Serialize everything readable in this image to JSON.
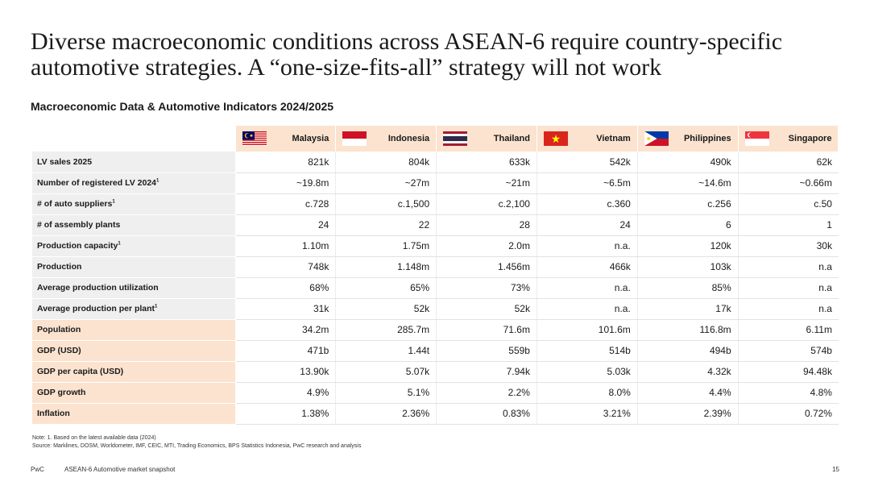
{
  "title": "Diverse macroeconomic conditions across ASEAN-6 require country-specific automotive strategies. A “one-size-fits-all” strategy will not work",
  "subtitle": "Macroeconomic Data & Automotive Indicators 2024/2025",
  "countries": [
    {
      "name": "Malaysia",
      "flag": "malaysia-flag-icon"
    },
    {
      "name": "Indonesia",
      "flag": "indonesia-flag-icon"
    },
    {
      "name": "Thailand",
      "flag": "thailand-flag-icon"
    },
    {
      "name": "Vietnam",
      "flag": "vietnam-flag-icon"
    },
    {
      "name": "Philippines",
      "flag": "philippines-flag-icon"
    },
    {
      "name": "Singapore",
      "flag": "singapore-flag-icon"
    }
  ],
  "rows": [
    {
      "label": "LV sales 2025",
      "sup": "",
      "values": [
        "821k",
        "804k",
        "633k",
        "542k",
        "490k",
        "62k"
      ]
    },
    {
      "label": "Number of registered LV 2024",
      "sup": "1",
      "values": [
        "~19.8m",
        "~27m",
        "~21m",
        "~6.5m",
        "~14.6m",
        "~0.66m"
      ]
    },
    {
      "label": "# of auto suppliers",
      "sup": "1",
      "values": [
        "c.728",
        "c.1,500",
        "c.2,100",
        "c.360",
        "c.256",
        "c.50"
      ]
    },
    {
      "label": "# of assembly plants",
      "sup": "",
      "values": [
        "24",
        "22",
        "28",
        "24",
        "6",
        "1"
      ]
    },
    {
      "label": "Production capacity",
      "sup": "1",
      "values": [
        "1.10m",
        "1.75m",
        "2.0m",
        "n.a.",
        "120k",
        "30k"
      ]
    },
    {
      "label": "Production",
      "sup": "",
      "values": [
        "748k",
        "1.148m",
        "1.456m",
        "466k",
        "103k",
        "n.a"
      ]
    },
    {
      "label": "Average production utilization",
      "sup": "",
      "values": [
        "68%",
        "65%",
        "73%",
        "n.a.",
        "85%",
        "n.a"
      ]
    },
    {
      "label": "Average production per plant",
      "sup": "1",
      "values": [
        "31k",
        "52k",
        "52k",
        "n.a.",
        "17k",
        "n.a"
      ]
    },
    {
      "label": "Population",
      "sup": "",
      "macro": true,
      "values": [
        "34.2m",
        "285.7m",
        "71.6m",
        "101.6m",
        "116.8m",
        "6.11m"
      ]
    },
    {
      "label": "GDP (USD)",
      "sup": "",
      "macro": true,
      "values": [
        "471b",
        "1.44t",
        "559b",
        "514b",
        "494b",
        "574b"
      ]
    },
    {
      "label": "GDP per capita (USD)",
      "sup": "",
      "macro": true,
      "values": [
        "13.90k",
        "5.07k",
        "7.94k",
        "5.03k",
        "4.32k",
        "94.48k"
      ]
    },
    {
      "label": "GDP growth",
      "sup": "",
      "macro": true,
      "values": [
        "4.9%",
        "5.1%",
        "2.2%",
        "8.0%",
        "4.4%",
        "4.8%"
      ]
    },
    {
      "label": "Inflation",
      "sup": "",
      "macro": true,
      "values": [
        "1.38%",
        "2.36%",
        "0.83%",
        "3.21%",
        "2.39%",
        "0.72%"
      ]
    }
  ],
  "notes": {
    "line1": "Note: 1. Based on the latest available data (2024)",
    "line2": "Source: Marklines, DOSM, Worldometer, IMF, CEIC, MTI, Trading Economics, BPS Statistics Indonesia, PwC research and analysis"
  },
  "footer": {
    "brand": "PwC",
    "doc": "ASEAN-6 Automotive market snapshot",
    "page": "15"
  },
  "colors": {
    "header_bg": "#fbe3cf",
    "label_bg": "#efefef",
    "macro_label_bg": "#fbe3cf"
  }
}
